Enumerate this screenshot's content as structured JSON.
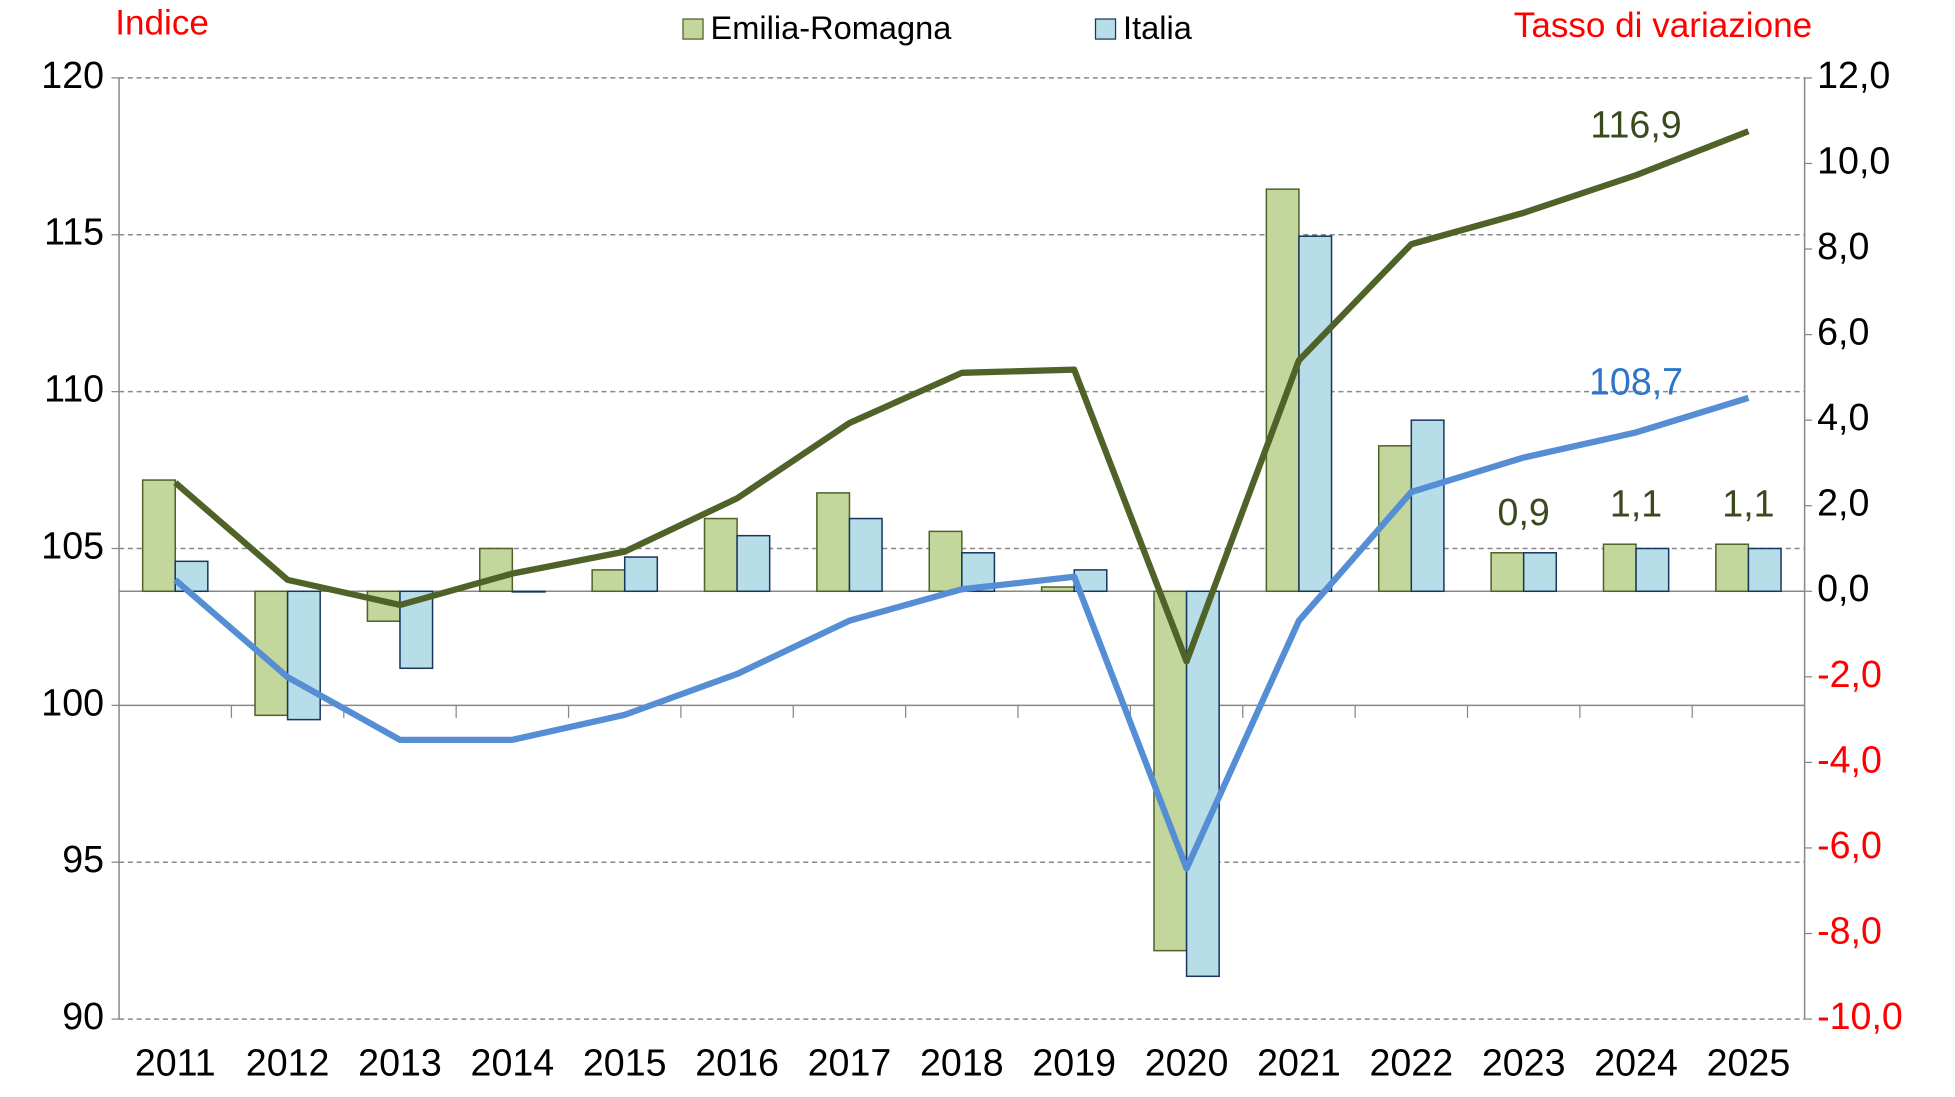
{
  "chart_data": {
    "type": "bar-line",
    "y_label": "Indice",
    "y2_label": "Tasso di variazione",
    "categories": [
      "2011",
      "2012",
      "2013",
      "2014",
      "2015",
      "2016",
      "2017",
      "2018",
      "2019",
      "2020",
      "2021",
      "2022",
      "2023",
      "2024",
      "2025"
    ],
    "series": [
      {
        "name": "Emilia-Romagna",
        "type": "bar",
        "axis": "y2",
        "color": "#c3d69b",
        "stroke": "#4f6228",
        "values": [
          2.6,
          -2.9,
          -0.7,
          1.0,
          0.5,
          1.7,
          2.3,
          1.4,
          0.1,
          -8.4,
          9.4,
          3.4,
          0.9,
          1.1,
          1.1
        ],
        "value_labels": [
          null,
          null,
          null,
          null,
          null,
          null,
          null,
          null,
          null,
          null,
          null,
          null,
          "0,9",
          "1,1",
          "1,1"
        ],
        "label_color": "#3b4a1e"
      },
      {
        "name": "Italia",
        "type": "bar",
        "axis": "y2",
        "color": "#b7dde8",
        "stroke": "#17375e",
        "values": [
          0.7,
          -3.0,
          -1.8,
          0.0,
          0.8,
          1.3,
          1.7,
          0.9,
          0.5,
          -9.0,
          8.3,
          4.0,
          0.9,
          1.0,
          1.0
        ]
      },
      {
        "type": "line",
        "color": "#4f6228",
        "values": [
          107.1,
          104.0,
          103.2,
          104.2,
          104.9,
          106.6,
          109.0,
          110.6,
          110.7,
          101.4,
          111.0,
          114.7,
          115.7,
          116.9,
          118.3
        ],
        "value_labels": [
          null,
          null,
          null,
          null,
          null,
          null,
          null,
          null,
          null,
          null,
          null,
          null,
          null,
          "116,9",
          null
        ],
        "label_color": "#3b4a1e"
      },
      {
        "type": "line",
        "color": "#558ed5",
        "values": [
          104.0,
          100.9,
          98.9,
          98.9,
          99.7,
          101.0,
          102.7,
          103.7,
          104.1,
          94.8,
          102.7,
          106.8,
          107.9,
          108.7,
          109.8
        ],
        "value_labels": [
          null,
          null,
          null,
          null,
          null,
          null,
          null,
          null,
          null,
          null,
          null,
          null,
          null,
          "108,7",
          null
        ],
        "label_color": "#2e75c9"
      }
    ],
    "ylim": [
      90,
      120
    ],
    "yticks": [
      90,
      95,
      100,
      105,
      110,
      115,
      120
    ],
    "y2lim": [
      -10,
      12
    ],
    "y2ticks": [
      {
        "value": -10,
        "label": "-10,0"
      },
      {
        "value": -8,
        "label": "-8,0"
      },
      {
        "value": -6,
        "label": "-6,0"
      },
      {
        "value": -4,
        "label": "-4,0"
      },
      {
        "value": -2,
        "label": "-2,0"
      },
      {
        "value": 0,
        "label": "0,0"
      },
      {
        "value": 2,
        "label": "2,0"
      },
      {
        "value": 4,
        "label": "4,0"
      },
      {
        "value": 6,
        "label": "6,0"
      },
      {
        "value": 8,
        "label": "8,0"
      },
      {
        "value": 10,
        "label": "10,0"
      },
      {
        "value": 12,
        "label": "12,0"
      }
    ],
    "negative_y2tick_color": "#ff0000",
    "axis_label_color": "#ff0000",
    "grid": true,
    "legend": "top"
  }
}
